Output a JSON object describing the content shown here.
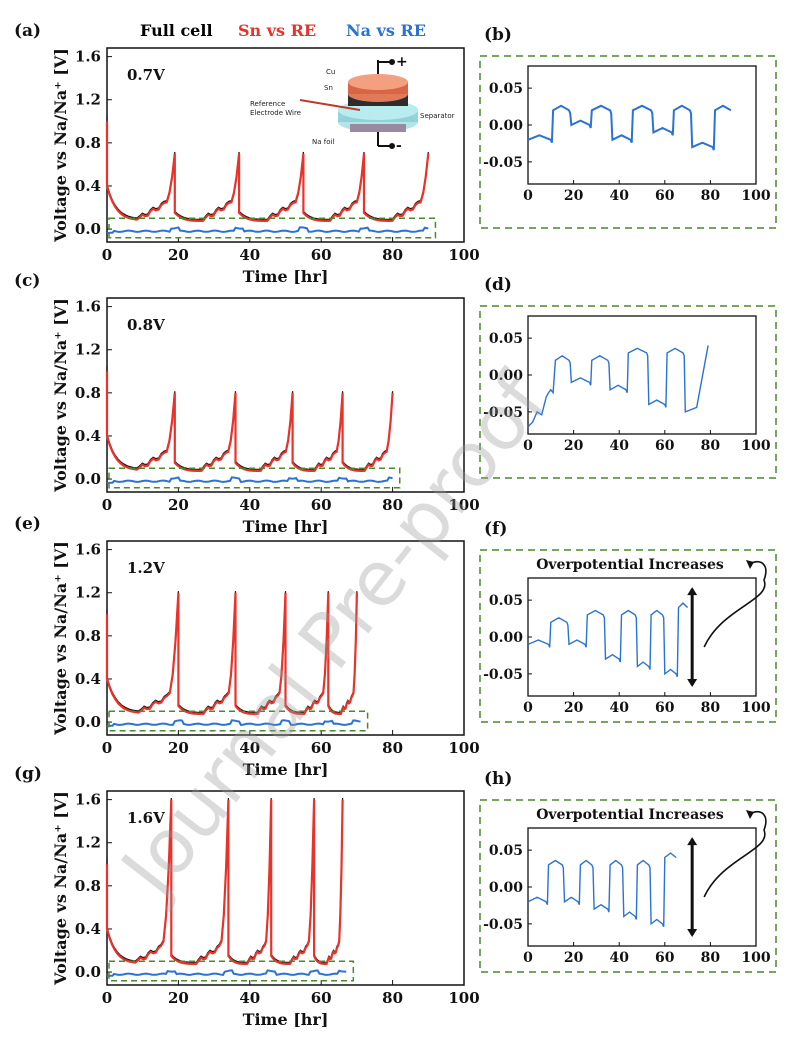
{
  "legend": {
    "full_cell": "Full cell",
    "full_cell_color": "#111111",
    "sn": "Sn vs RE",
    "sn_color": "#e8322a",
    "na": "Na vs RE",
    "na_color": "#2a72d4"
  },
  "inset": {
    "cu": "Cu",
    "sn": "Sn",
    "ref": "Reference",
    "wire": "Electrode Wire",
    "separator": "Separator",
    "nafoil": "Na foil",
    "plus": "+",
    "minus": "-"
  },
  "watermark": "Journal Pre-proof",
  "panels": [
    {
      "label": "(a)",
      "voltage": "0.7V",
      "xlabel": "Time [hr]",
      "ylabel": "Voltage vs Na/Na⁺ [V]"
    },
    {
      "label": "(c)",
      "voltage": "0.8V",
      "xlabel": "Time [hr]",
      "ylabel": "Voltage vs Na/Na⁺ [V]"
    },
    {
      "label": "(e)",
      "voltage": "1.2V",
      "xlabel": "Time [hr]",
      "ylabel": "Voltage vs Na/Na⁺ [V]"
    },
    {
      "label": "(g)",
      "voltage": "1.6V",
      "xlabel": "Time [hr]",
      "ylabel": "Voltage vs Na/Na⁺ [V]"
    }
  ],
  "right_panels": [
    {
      "label": "(b)",
      "annotation": ""
    },
    {
      "label": "(d)",
      "annotation": ""
    },
    {
      "label": "(f)",
      "annotation": "Overpotential Increases"
    },
    {
      "label": "(h)",
      "annotation": "Overpotential Increases"
    }
  ],
  "chart_data": [
    {
      "type": "line",
      "panel": "(a)",
      "xlim": [
        0,
        100
      ],
      "ylim": [
        -0.12,
        1.68
      ],
      "xticks": [
        "0",
        "20",
        "40",
        "60",
        "80",
        "100"
      ],
      "yticks": [
        "0.0",
        "0.4",
        "0.8",
        "1.2",
        "1.6"
      ],
      "cutoff": 0.7,
      "cycle_peaks": [
        19,
        37,
        55,
        72,
        90
      ],
      "end_time": 90,
      "series": [
        {
          "name": "Full cell"
        },
        {
          "name": "Sn vs RE"
        },
        {
          "name": "Na vs RE"
        }
      ]
    },
    {
      "type": "line",
      "panel": "(c)",
      "xlim": [
        0,
        100
      ],
      "ylim": [
        -0.12,
        1.68
      ],
      "xticks": [
        "0",
        "20",
        "40",
        "60",
        "80",
        "100"
      ],
      "yticks": [
        "0.0",
        "0.4",
        "0.8",
        "1.2",
        "1.6"
      ],
      "cutoff": 0.8,
      "cycle_peaks": [
        19,
        36,
        52,
        66,
        80
      ],
      "end_time": 80,
      "series": [
        {
          "name": "Full cell"
        },
        {
          "name": "Sn vs RE"
        },
        {
          "name": "Na vs RE"
        }
      ]
    },
    {
      "type": "line",
      "panel": "(e)",
      "xlim": [
        0,
        100
      ],
      "ylim": [
        -0.12,
        1.68
      ],
      "xticks": [
        "0",
        "20",
        "40",
        "60",
        "80",
        "100"
      ],
      "yticks": [
        "0.0",
        "0.4",
        "0.8",
        "1.2",
        "1.6"
      ],
      "cutoff": 1.2,
      "cycle_peaks": [
        20,
        36,
        50,
        62,
        70
      ],
      "end_time": 71,
      "series": [
        {
          "name": "Full cell"
        },
        {
          "name": "Sn vs RE"
        },
        {
          "name": "Na vs RE"
        }
      ]
    },
    {
      "type": "line",
      "panel": "(g)",
      "xlim": [
        0,
        100
      ],
      "ylim": [
        -0.12,
        1.68
      ],
      "xticks": [
        "0",
        "20",
        "40",
        "60",
        "80",
        "100"
      ],
      "yticks": [
        "0.0",
        "0.4",
        "0.8",
        "1.2",
        "1.6"
      ],
      "cutoff": 1.6,
      "cycle_peaks": [
        18,
        34,
        46,
        58,
        66
      ],
      "end_time": 67,
      "series": [
        {
          "name": "Full cell"
        },
        {
          "name": "Sn vs RE"
        },
        {
          "name": "Na vs RE"
        }
      ]
    },
    {
      "type": "line",
      "panel": "(b)",
      "xlim": [
        0,
        100
      ],
      "ylim": [
        -0.08,
        0.08
      ],
      "xticks": [
        "0",
        "20",
        "40",
        "60",
        "80",
        "100"
      ],
      "yticks": [
        "0.05",
        "0.00",
        "-0.05"
      ],
      "series": [
        {
          "name": "Na vs RE",
          "x": [
            0,
            10,
            11,
            18,
            19,
            27,
            28,
            36,
            37,
            45,
            46,
            54,
            55,
            63,
            64,
            71,
            72,
            81,
            82,
            89
          ],
          "y": [
            -0.02,
            -0.02,
            0.02,
            0.02,
            0.0,
            0.0,
            0.02,
            0.02,
            -0.02,
            -0.02,
            0.02,
            0.02,
            -0.01,
            -0.01,
            0.02,
            0.02,
            -0.03,
            -0.03,
            0.02,
            0.02
          ]
        }
      ]
    },
    {
      "type": "line",
      "panel": "(d)",
      "xlim": [
        0,
        100
      ],
      "ylim": [
        -0.08,
        0.08
      ],
      "xticks": [
        "0",
        "20",
        "40",
        "60",
        "80",
        "100"
      ],
      "yticks": [
        "0.05",
        "0.00",
        "-0.05"
      ],
      "series": [
        {
          "name": "Na vs RE",
          "x": [
            0,
            4,
            8,
            10,
            12,
            18,
            19,
            27,
            28,
            35,
            36,
            43,
            44,
            52,
            53,
            60,
            61,
            68,
            69,
            79
          ],
          "y": [
            -0.07,
            -0.05,
            -0.03,
            -0.02,
            0.02,
            0.02,
            -0.01,
            -0.01,
            0.02,
            0.02,
            -0.02,
            -0.02,
            0.03,
            0.03,
            -0.04,
            -0.04,
            0.03,
            0.03,
            -0.05,
            0.04
          ]
        }
      ]
    },
    {
      "type": "line",
      "panel": "(f)",
      "xlim": [
        0,
        100
      ],
      "ylim": [
        -0.08,
        0.08
      ],
      "xticks": [
        "0",
        "20",
        "40",
        "60",
        "80",
        "100"
      ],
      "yticks": [
        "0.05",
        "0.00",
        "-0.05"
      ],
      "series": [
        {
          "name": "Na vs RE",
          "x": [
            0,
            9,
            10,
            17,
            18,
            25,
            26,
            33,
            34,
            40,
            41,
            47,
            48,
            53,
            54,
            59,
            60,
            65,
            66,
            70
          ],
          "y": [
            -0.01,
            -0.01,
            0.02,
            0.02,
            -0.01,
            -0.01,
            0.03,
            0.03,
            -0.03,
            -0.03,
            0.03,
            0.03,
            -0.04,
            -0.04,
            0.03,
            0.03,
            -0.05,
            -0.05,
            0.04,
            0.04
          ]
        }
      ]
    },
    {
      "type": "line",
      "panel": "(h)",
      "xlim": [
        0,
        100
      ],
      "ylim": [
        -0.08,
        0.08
      ],
      "xticks": [
        "0",
        "20",
        "40",
        "60",
        "80",
        "100"
      ],
      "yticks": [
        "0.05",
        "0.00",
        "-0.05"
      ],
      "series": [
        {
          "name": "Na vs RE",
          "x": [
            0,
            8,
            9,
            15,
            16,
            22,
            23,
            28,
            29,
            35,
            36,
            41,
            42,
            47,
            48,
            53,
            54,
            59,
            60,
            65
          ],
          "y": [
            -0.02,
            -0.02,
            0.03,
            0.03,
            -0.02,
            -0.02,
            0.03,
            0.03,
            -0.03,
            -0.03,
            0.03,
            0.03,
            -0.04,
            -0.04,
            0.03,
            0.03,
            -0.05,
            -0.05,
            0.04,
            0.04
          ]
        }
      ]
    }
  ]
}
